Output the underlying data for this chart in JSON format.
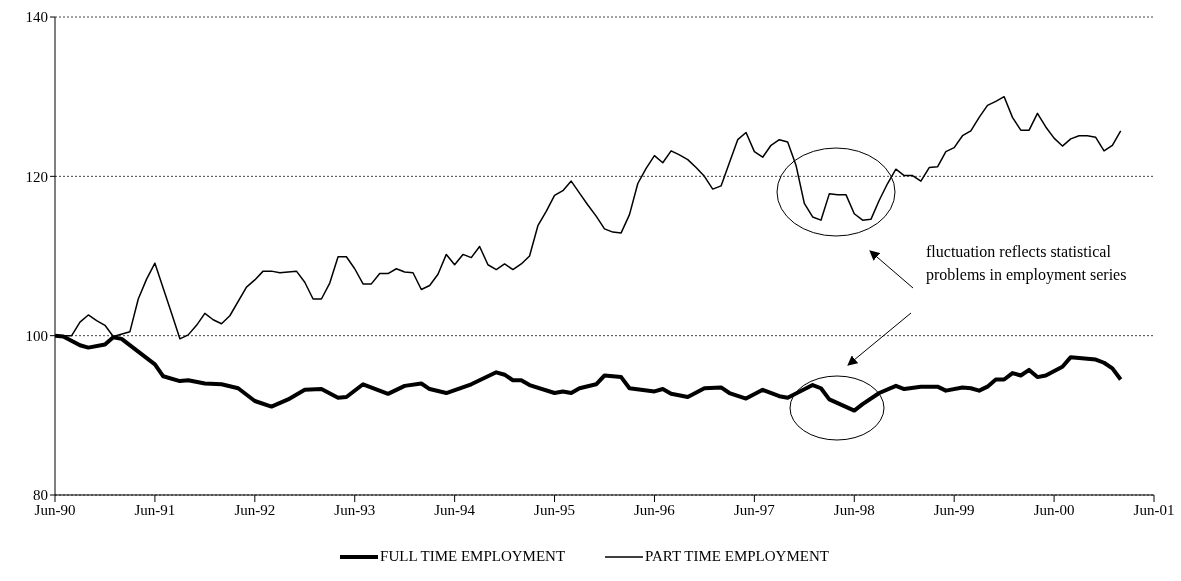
{
  "chart_data": {
    "type": "line",
    "xlim": [
      "1990-06",
      "2001-06"
    ],
    "xticks": [
      {
        "value": "1990-06",
        "label": "Jun-90"
      },
      {
        "value": "1991-06",
        "label": "Jun-91"
      },
      {
        "value": "1992-06",
        "label": "Jun-92"
      },
      {
        "value": "1993-06",
        "label": "Jun-93"
      },
      {
        "value": "1994-06",
        "label": "Jun-94"
      },
      {
        "value": "1995-06",
        "label": "Jun-95"
      },
      {
        "value": "1996-06",
        "label": "Jun-96"
      },
      {
        "value": "1997-06",
        "label": "Jun-97"
      },
      {
        "value": "1998-06",
        "label": "Jun-98"
      },
      {
        "value": "1999-06",
        "label": "Jun-99"
      },
      {
        "value": "2000-06",
        "label": "Jun-00"
      },
      {
        "value": "2001-06",
        "label": "Jun-01"
      }
    ],
    "ylim": [
      80,
      140
    ],
    "yticks": [
      80,
      100,
      120,
      140
    ],
    "grid": "y",
    "legend": "bottom",
    "marker": "none",
    "line_style": "solid",
    "annotations": [
      "fluctuation reflects statistical problems in employment series"
    ],
    "series": [
      {
        "name": "FULL TIME EMPLOYMENT",
        "color": "#000000",
        "x": [
          "1990-06",
          "1990-07",
          "1990-09",
          "1990-10",
          "1990-12",
          "1991-01",
          "1991-02",
          "1991-04",
          "1991-06",
          "1991-07",
          "1991-09",
          "1991-10",
          "1991-12",
          "1992-02",
          "1992-04",
          "1992-06",
          "1992-08",
          "1992-10",
          "1992-12",
          "1993-02",
          "1993-04",
          "1993-05",
          "1993-07",
          "1993-10",
          "1993-12",
          "1994-02",
          "1994-03",
          "1994-05",
          "1994-08",
          "1994-11",
          "1994-12",
          "1995-01",
          "1995-02",
          "1995-03",
          "1995-06",
          "1995-07",
          "1995-08",
          "1995-09",
          "1995-11",
          "1995-12",
          "1996-02",
          "1996-03",
          "1996-06",
          "1996-07",
          "1996-08",
          "1996-10",
          "1996-12",
          "1997-02",
          "1997-03",
          "1997-05",
          "1997-07",
          "1997-09",
          "1997-10",
          "1998-01",
          "1998-02",
          "1998-03",
          "1998-06",
          "1998-07",
          "1998-09",
          "1998-11",
          "1998-12",
          "1999-02",
          "1999-04",
          "1999-05",
          "1999-07",
          "1999-08",
          "1999-09",
          "1999-10",
          "1999-11",
          "1999-12",
          "2000-01",
          "2000-02",
          "2000-03",
          "2000-04",
          "2000-05",
          "2000-07",
          "2000-08",
          "2000-09",
          "2000-11",
          "2000-12",
          "2001-01",
          "2001-02"
        ],
        "values": [
          100,
          99.9,
          98.8,
          98.5,
          98.9,
          99.8,
          99.6,
          98.0,
          96.4,
          94.9,
          94.3,
          94.4,
          94.0,
          93.9,
          93.4,
          91.8,
          91.1,
          92.0,
          93.2,
          93.3,
          92.2,
          92.3,
          93.9,
          92.7,
          93.7,
          94.0,
          93.3,
          92.8,
          93.9,
          95.4,
          95.1,
          94.4,
          94.4,
          93.8,
          92.8,
          93.0,
          92.8,
          93.4,
          93.9,
          95.0,
          94.8,
          93.4,
          93.0,
          93.3,
          92.7,
          92.3,
          93.4,
          93.5,
          92.8,
          92.1,
          93.2,
          92.4,
          92.2,
          93.8,
          93.4,
          92.0,
          90.6,
          91.4,
          92.8,
          93.7,
          93.3,
          93.6,
          93.6,
          93.1,
          93.5,
          93.4,
          93.1,
          93.6,
          94.5,
          94.5,
          95.3,
          95.0,
          95.7,
          94.8,
          95.0,
          96.1,
          97.3,
          97.2,
          97.0,
          96.6,
          95.9,
          94.5
        ]
      },
      {
        "name": "PART TIME EMPLOYMENT",
        "color": "#000000",
        "x": [
          "1990-06",
          "1990-08",
          "1990-09",
          "1990-10",
          "1990-11",
          "1990-12",
          "1991-01",
          "1991-03",
          "1991-04",
          "1991-05",
          "1991-06",
          "1991-08",
          "1991-09",
          "1991-10",
          "1991-11",
          "1991-12",
          "1992-01",
          "1992-02",
          "1992-03",
          "1992-05",
          "1992-06",
          "1992-07",
          "1992-08",
          "1992-09",
          "1992-11",
          "1992-12",
          "1993-01",
          "1993-02",
          "1993-03",
          "1993-04",
          "1993-05",
          "1993-06",
          "1993-07",
          "1993-08",
          "1993-09",
          "1993-10",
          "1993-11",
          "1993-12",
          "1994-01",
          "1994-02",
          "1994-03",
          "1994-04",
          "1994-05",
          "1994-06",
          "1994-07",
          "1994-08",
          "1994-09",
          "1994-10",
          "1994-11",
          "1994-12",
          "1995-01",
          "1995-02",
          "1995-03",
          "1995-04",
          "1995-05",
          "1995-06",
          "1995-07",
          "1995-08",
          "1995-09",
          "1995-10",
          "1995-11",
          "1995-12",
          "1996-01",
          "1996-02",
          "1996-03",
          "1996-04",
          "1996-05",
          "1996-06",
          "1996-07",
          "1996-08",
          "1996-09",
          "1996-10",
          "1996-11",
          "1996-12",
          "1997-01",
          "1997-02",
          "1997-03",
          "1997-04",
          "1997-05",
          "1997-06",
          "1997-07",
          "1997-08",
          "1997-09",
          "1997-10",
          "1997-11",
          "1997-12",
          "1998-01",
          "1998-02",
          "1998-03",
          "1998-04",
          "1998-05",
          "1998-06",
          "1998-07",
          "1998-08",
          "1998-09",
          "1998-10",
          "1998-11",
          "1998-12",
          "1999-01",
          "1999-02",
          "1999-03",
          "1999-04",
          "1999-05",
          "1999-06",
          "1999-07",
          "1999-08",
          "1999-09",
          "1999-10",
          "1999-11",
          "1999-12",
          "2000-01",
          "2000-02",
          "2000-03",
          "2000-04",
          "2000-05",
          "2000-06",
          "2000-07",
          "2000-08",
          "2000-09",
          "2000-10",
          "2000-11",
          "2000-12",
          "2001-01",
          "2001-02"
        ],
        "values": [
          100,
          100,
          101.7,
          102.6,
          101.9,
          101.3,
          99.9,
          100.5,
          104.6,
          107.1,
          109.1,
          102.8,
          99.6,
          100.1,
          101.3,
          102.8,
          102.0,
          101.5,
          102.5,
          106.1,
          107.0,
          108.1,
          108.1,
          107.9,
          108.1,
          106.7,
          104.6,
          104.6,
          106.6,
          109.9,
          109.9,
          108.4,
          106.5,
          106.5,
          107.8,
          107.8,
          108.4,
          108.0,
          107.9,
          105.8,
          106.3,
          107.7,
          110.2,
          108.9,
          110.2,
          109.8,
          111.2,
          108.9,
          108.3,
          109.0,
          108.3,
          109.0,
          110.0,
          113.8,
          115.6,
          117.6,
          118.2,
          119.4,
          117.9,
          116.4,
          115.0,
          113.4,
          113.0,
          112.9,
          115.2,
          119.1,
          121.0,
          122.6,
          121.7,
          123.2,
          122.7,
          122.1,
          121.1,
          120.0,
          118.4,
          118.8,
          121.7,
          124.6,
          125.5,
          123.1,
          122.4,
          123.9,
          124.6,
          124.3,
          121.4,
          116.6,
          114.9,
          114.5,
          117.8,
          117.7,
          117.7,
          115.3,
          114.5,
          114.6,
          117.0,
          119.1,
          120.9,
          120.1,
          120.1,
          119.4,
          121.1,
          121.2,
          123.1,
          123.6,
          125.1,
          125.7,
          127.4,
          128.9,
          129.4,
          130.0,
          127.4,
          125.8,
          125.8,
          127.9,
          126.2,
          124.8,
          123.8,
          124.7,
          125.1,
          125.1,
          124.9,
          123.2,
          123.9,
          125.7
        ]
      }
    ]
  }
}
